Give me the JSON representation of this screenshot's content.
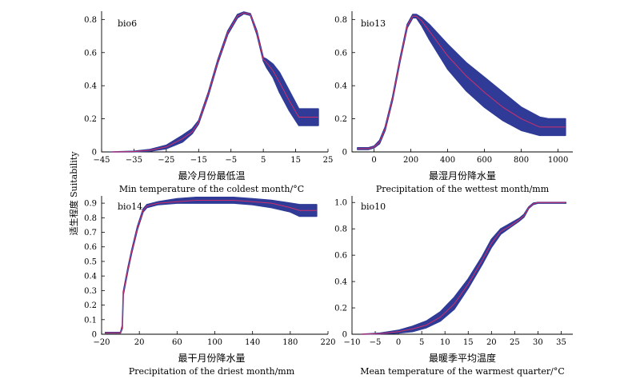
{
  "ylabel": "适生程度 Suitability",
  "band_color": "#2f3b97",
  "line_color": "#d0306a",
  "chart_data": [
    {
      "type": "line",
      "label": "bio6",
      "xlabel_cn": "最冷月份最低温",
      "xlabel_en": "Min temperature of the coldest month/°C",
      "xlim": [
        -45,
        25
      ],
      "ylim": [
        0,
        0.85
      ],
      "xticks": [
        -45,
        -35,
        -25,
        -15,
        -5,
        5,
        15,
        25
      ],
      "xtick_labels": [
        "−45",
        "−35",
        "−25",
        "−15",
        "−5",
        "5",
        "15",
        "25"
      ],
      "yticks": [
        0,
        0.2,
        0.4,
        0.6,
        0.8
      ],
      "ytick_labels": [
        "0",
        "0.2",
        "0.4",
        "0.6",
        "0.8"
      ],
      "x": [
        -42,
        -35,
        -30,
        -25,
        -20,
        -17,
        -15,
        -12,
        -9,
        -6,
        -3,
        -1,
        1,
        3,
        5,
        6,
        8,
        10,
        13,
        16,
        22
      ],
      "mean": [
        0,
        0.002,
        0.01,
        0.03,
        0.08,
        0.12,
        0.18,
        0.35,
        0.55,
        0.72,
        0.82,
        0.84,
        0.83,
        0.72,
        0.56,
        0.54,
        0.49,
        0.42,
        0.31,
        0.21,
        0.21
      ],
      "lower": [
        0,
        0.001,
        0.005,
        0.02,
        0.06,
        0.11,
        0.17,
        0.34,
        0.54,
        0.71,
        0.81,
        0.835,
        0.825,
        0.71,
        0.55,
        0.51,
        0.45,
        0.36,
        0.25,
        0.16,
        0.16
      ],
      "upper": [
        0,
        0.004,
        0.015,
        0.04,
        0.1,
        0.14,
        0.19,
        0.36,
        0.56,
        0.73,
        0.83,
        0.845,
        0.835,
        0.73,
        0.57,
        0.56,
        0.53,
        0.48,
        0.37,
        0.26,
        0.26
      ]
    },
    {
      "type": "line",
      "label": "bio13",
      "xlabel_cn": "最湿月份降水量",
      "xlabel_en": "Precipitation of the wettest month/mm",
      "xlim": [
        -120,
        1080
      ],
      "ylim": [
        0,
        0.85
      ],
      "xticks": [
        0,
        200,
        400,
        600,
        800,
        1000
      ],
      "xtick_labels": [
        "0",
        "200",
        "400",
        "600",
        "800",
        "1000"
      ],
      "yticks": [
        0,
        0.2,
        0.4,
        0.6,
        0.8
      ],
      "ytick_labels": [
        "0",
        "0.2",
        "0.4",
        "0.6",
        "0.8"
      ],
      "x": [
        -90,
        -30,
        0,
        30,
        60,
        100,
        140,
        180,
        210,
        230,
        260,
        300,
        400,
        500,
        600,
        700,
        800,
        900,
        950,
        1040
      ],
      "mean": [
        0.02,
        0.02,
        0.03,
        0.06,
        0.14,
        0.32,
        0.55,
        0.76,
        0.82,
        0.82,
        0.79,
        0.73,
        0.58,
        0.46,
        0.36,
        0.27,
        0.2,
        0.15,
        0.15,
        0.15
      ],
      "lower": [
        0.015,
        0.015,
        0.025,
        0.05,
        0.13,
        0.31,
        0.54,
        0.75,
        0.81,
        0.81,
        0.76,
        0.68,
        0.5,
        0.37,
        0.27,
        0.19,
        0.13,
        0.1,
        0.1,
        0.1
      ],
      "upper": [
        0.025,
        0.025,
        0.035,
        0.07,
        0.15,
        0.33,
        0.56,
        0.77,
        0.83,
        0.83,
        0.81,
        0.77,
        0.65,
        0.54,
        0.45,
        0.36,
        0.27,
        0.21,
        0.2,
        0.2
      ]
    },
    {
      "type": "line",
      "label": "bio14",
      "xlabel_cn": "最干月份降水量",
      "xlabel_en": "Precipitation of the driest month/mm",
      "xlim": [
        -20,
        220
      ],
      "ylim": [
        0,
        0.95
      ],
      "xticks": [
        -20,
        20,
        60,
        100,
        140,
        180,
        220
      ],
      "xtick_labels": [
        "−20",
        "20",
        "60",
        "100",
        "140",
        "180",
        "220"
      ],
      "yticks": [
        0,
        0.1,
        0.2,
        0.3,
        0.4,
        0.5,
        0.6,
        0.7,
        0.8,
        0.9
      ],
      "ytick_labels": [
        "0",
        "0.1",
        "0.2",
        "0.3",
        "0.4",
        "0.5",
        "0.6",
        "0.7",
        "0.8",
        "0.9"
      ],
      "x": [
        -16,
        0,
        2,
        3,
        5,
        8,
        12,
        18,
        24,
        28,
        40,
        60,
        80,
        100,
        120,
        140,
        160,
        180,
        190,
        208
      ],
      "mean": [
        0.01,
        0.01,
        0.05,
        0.28,
        0.35,
        0.45,
        0.57,
        0.73,
        0.85,
        0.88,
        0.9,
        0.91,
        0.92,
        0.92,
        0.92,
        0.91,
        0.9,
        0.87,
        0.85,
        0.85
      ],
      "lower": [
        0.008,
        0.008,
        0.04,
        0.27,
        0.34,
        0.44,
        0.56,
        0.72,
        0.84,
        0.87,
        0.89,
        0.9,
        0.9,
        0.9,
        0.9,
        0.89,
        0.87,
        0.84,
        0.81,
        0.81
      ],
      "upper": [
        0.012,
        0.012,
        0.06,
        0.29,
        0.36,
        0.46,
        0.58,
        0.74,
        0.86,
        0.89,
        0.91,
        0.93,
        0.94,
        0.94,
        0.94,
        0.93,
        0.92,
        0.9,
        0.89,
        0.89
      ]
    },
    {
      "type": "line",
      "label": "bio10",
      "xlabel_cn": "最暖季平均温度",
      "xlabel_en": "Mean temperature of the warmest quarter/°C",
      "xlim": [
        -10,
        37.5
      ],
      "ylim": [
        0,
        1.05
      ],
      "xticks": [
        -10,
        -5,
        0,
        5,
        10,
        15,
        20,
        25,
        30,
        35
      ],
      "xtick_labels": [
        "−10",
        "−5",
        "0",
        "5",
        "10",
        "15",
        "20",
        "25",
        "30",
        "35"
      ],
      "yticks": [
        0,
        0.2,
        0.4,
        0.6,
        0.8,
        1.0
      ],
      "ytick_labels": [
        "0",
        "0.2",
        "0.4",
        "0.6",
        "0.8",
        "1.0"
      ],
      "x": [
        -8,
        -4,
        0,
        3,
        6,
        9,
        12,
        15,
        18,
        20,
        22,
        24,
        26,
        27,
        28,
        29,
        30,
        33,
        36
      ],
      "mean": [
        0,
        0.005,
        0.02,
        0.04,
        0.07,
        0.13,
        0.23,
        0.38,
        0.56,
        0.69,
        0.78,
        0.82,
        0.87,
        0.9,
        0.96,
        0.99,
        1.0,
        1.0,
        1.0
      ],
      "lower": [
        0,
        0.003,
        0.01,
        0.02,
        0.05,
        0.1,
        0.19,
        0.35,
        0.53,
        0.66,
        0.76,
        0.81,
        0.86,
        0.89,
        0.955,
        0.985,
        0.995,
        0.995,
        0.995
      ],
      "upper": [
        0,
        0.008,
        0.03,
        0.06,
        0.1,
        0.17,
        0.28,
        0.42,
        0.59,
        0.72,
        0.8,
        0.84,
        0.88,
        0.91,
        0.965,
        0.995,
        1.0,
        1.0,
        1.0
      ]
    }
  ]
}
